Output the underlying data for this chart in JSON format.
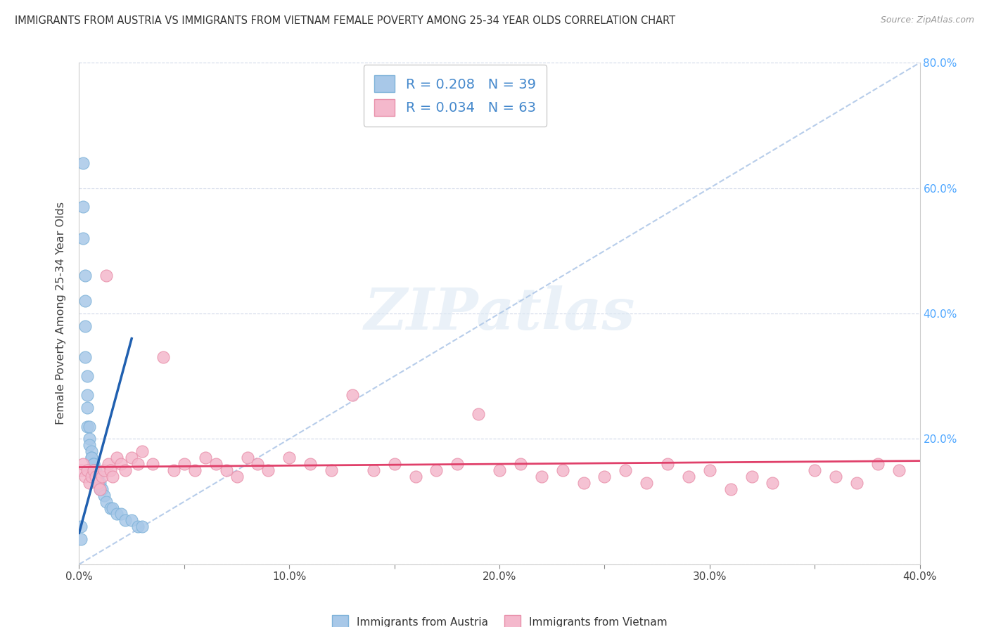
{
  "title": "IMMIGRANTS FROM AUSTRIA VS IMMIGRANTS FROM VIETNAM FEMALE POVERTY AMONG 25-34 YEAR OLDS CORRELATION CHART",
  "source": "Source: ZipAtlas.com",
  "ylabel": "Female Poverty Among 25-34 Year Olds",
  "xlim": [
    0.0,
    0.4
  ],
  "ylim": [
    0.0,
    0.8
  ],
  "xticks": [
    0.0,
    0.05,
    0.1,
    0.15,
    0.2,
    0.25,
    0.3,
    0.35,
    0.4
  ],
  "yticks": [
    0.0,
    0.2,
    0.4,
    0.6,
    0.8
  ],
  "right_yticks": [
    0.2,
    0.4,
    0.6,
    0.8
  ],
  "austria_R": 0.208,
  "austria_N": 39,
  "vietnam_R": 0.034,
  "vietnam_N": 63,
  "austria_color": "#a8c8e8",
  "austria_edge_color": "#7fb3d9",
  "vietnam_color": "#f4b8cc",
  "vietnam_edge_color": "#e890aa",
  "austria_line_color": "#2060b0",
  "vietnam_line_color": "#e0406a",
  "diag_line_color": "#b0c8e8",
  "right_ytick_color": "#4da6ff",
  "background_color": "#ffffff",
  "grid_color": "#d0d8e8",
  "watermark_text": "ZIPatlas",
  "legend_label_color": "#4488cc",
  "austria_scatter_x": [
    0.001,
    0.001,
    0.002,
    0.002,
    0.002,
    0.003,
    0.003,
    0.003,
    0.003,
    0.004,
    0.004,
    0.004,
    0.004,
    0.005,
    0.005,
    0.005,
    0.006,
    0.006,
    0.006,
    0.007,
    0.007,
    0.007,
    0.008,
    0.008,
    0.009,
    0.009,
    0.01,
    0.01,
    0.011,
    0.012,
    0.013,
    0.015,
    0.016,
    0.018,
    0.02,
    0.022,
    0.025,
    0.028,
    0.03
  ],
  "austria_scatter_y": [
    0.04,
    0.06,
    0.64,
    0.57,
    0.52,
    0.46,
    0.42,
    0.38,
    0.33,
    0.3,
    0.27,
    0.25,
    0.22,
    0.22,
    0.2,
    0.19,
    0.18,
    0.17,
    0.17,
    0.16,
    0.16,
    0.15,
    0.15,
    0.14,
    0.14,
    0.13,
    0.13,
    0.12,
    0.12,
    0.11,
    0.1,
    0.09,
    0.09,
    0.08,
    0.08,
    0.07,
    0.07,
    0.06,
    0.06
  ],
  "vietnam_scatter_x": [
    0.001,
    0.002,
    0.003,
    0.004,
    0.005,
    0.006,
    0.007,
    0.008,
    0.009,
    0.01,
    0.011,
    0.012,
    0.013,
    0.014,
    0.015,
    0.016,
    0.018,
    0.02,
    0.022,
    0.025,
    0.028,
    0.03,
    0.035,
    0.04,
    0.045,
    0.05,
    0.055,
    0.06,
    0.065,
    0.07,
    0.075,
    0.08,
    0.085,
    0.09,
    0.1,
    0.11,
    0.12,
    0.13,
    0.14,
    0.15,
    0.16,
    0.17,
    0.18,
    0.19,
    0.2,
    0.21,
    0.22,
    0.23,
    0.24,
    0.25,
    0.26,
    0.27,
    0.28,
    0.29,
    0.3,
    0.31,
    0.32,
    0.33,
    0.35,
    0.36,
    0.37,
    0.38,
    0.39
  ],
  "vietnam_scatter_y": [
    0.15,
    0.16,
    0.14,
    0.15,
    0.13,
    0.14,
    0.15,
    0.14,
    0.13,
    0.12,
    0.14,
    0.15,
    0.46,
    0.16,
    0.15,
    0.14,
    0.17,
    0.16,
    0.15,
    0.17,
    0.16,
    0.18,
    0.16,
    0.33,
    0.15,
    0.16,
    0.15,
    0.17,
    0.16,
    0.15,
    0.14,
    0.17,
    0.16,
    0.15,
    0.17,
    0.16,
    0.15,
    0.27,
    0.15,
    0.16,
    0.14,
    0.15,
    0.16,
    0.24,
    0.15,
    0.16,
    0.14,
    0.15,
    0.13,
    0.14,
    0.15,
    0.13,
    0.16,
    0.14,
    0.15,
    0.12,
    0.14,
    0.13,
    0.15,
    0.14,
    0.13,
    0.16,
    0.15
  ],
  "austria_trend_x": [
    0.0,
    0.025
  ],
  "austria_trend_y_start": 0.05,
  "austria_trend_y_end": 0.36,
  "vietnam_trend_x": [
    0.0,
    0.4
  ],
  "vietnam_trend_y_start": 0.155,
  "vietnam_trend_y_end": 0.165
}
